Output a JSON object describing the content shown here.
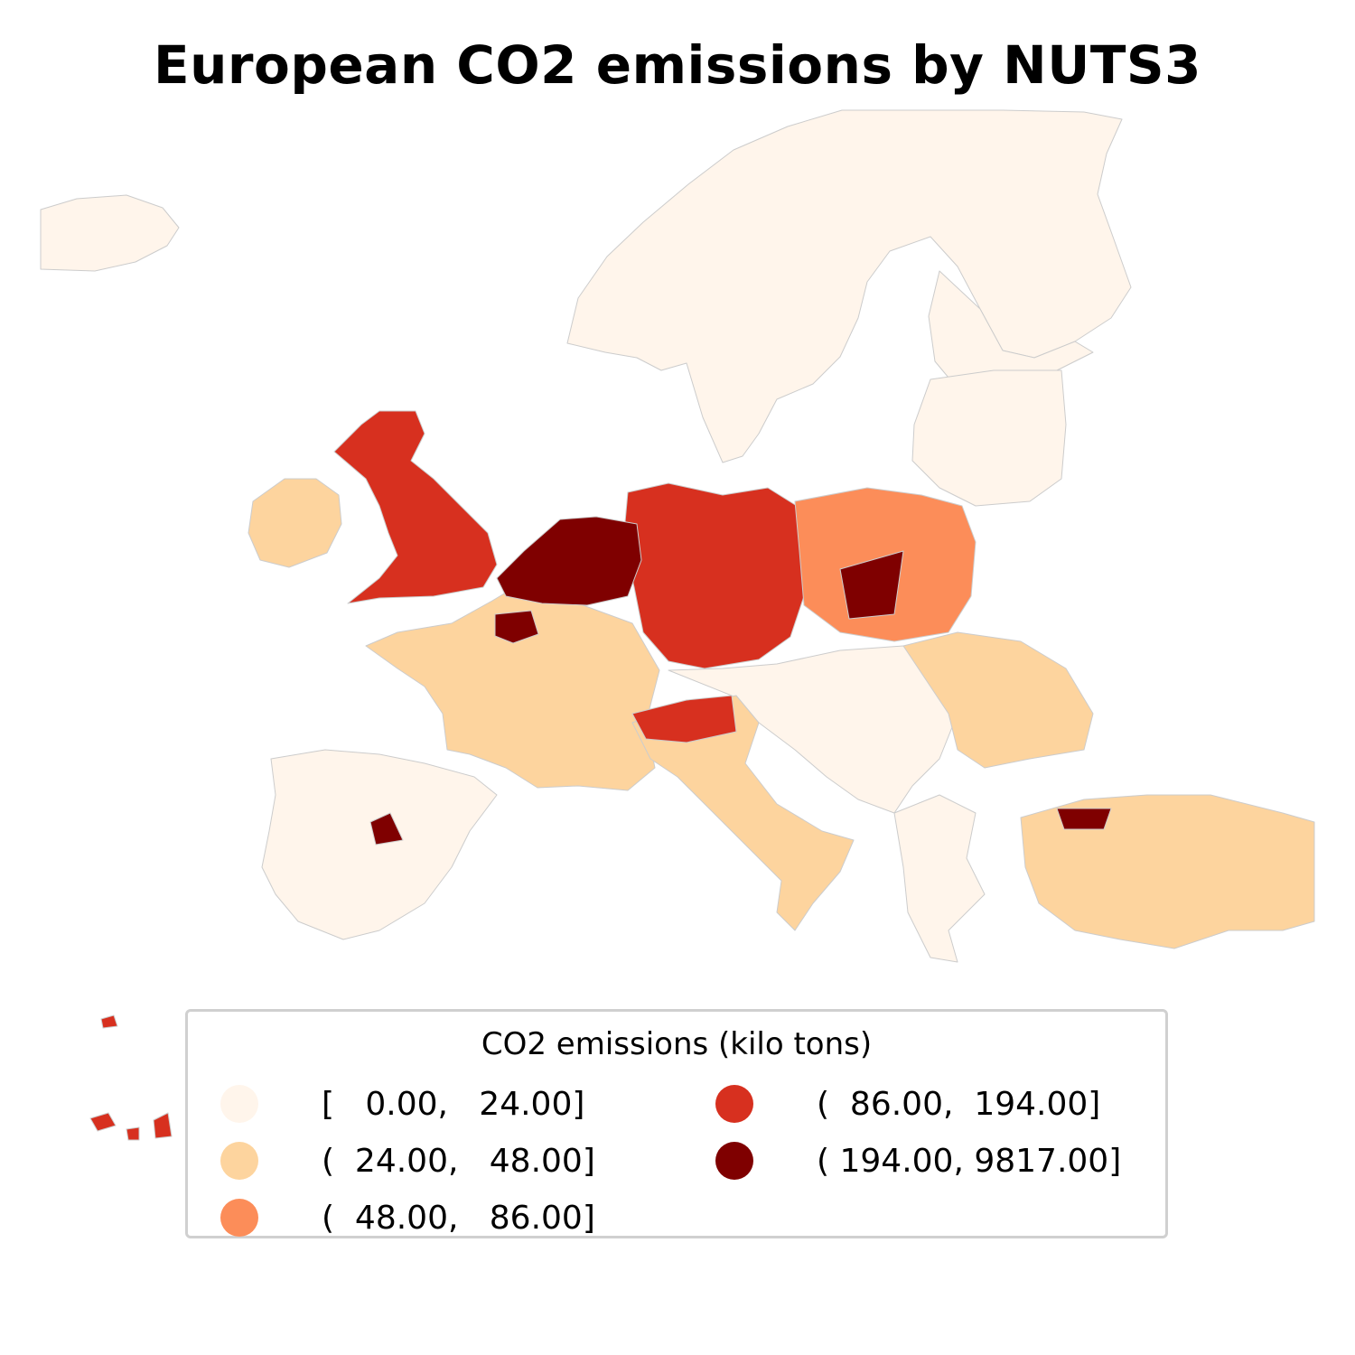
{
  "title": "European CO2 emissions by NUTS3",
  "legend": {
    "title": "CO2 emissions (kilo tons)",
    "items": [
      {
        "label": "[   0.00,   24.00]",
        "color": "#fff5eb"
      },
      {
        "label": "(  24.00,   48.00]",
        "color": "#fdd49e"
      },
      {
        "label": "(  48.00,   86.00]",
        "color": "#fc8d59"
      },
      {
        "label": "(  86.00,  194.00]",
        "color": "#d7301f"
      },
      {
        "label": "( 194.00, 9817.00]",
        "color": "#7f0000"
      }
    ]
  },
  "map": {
    "border_color": "#cccccc",
    "region_classes": [
      {
        "name": "Iceland",
        "class": 0
      },
      {
        "name": "Scandinavia",
        "class": 0
      },
      {
        "name": "Finland",
        "class": 0
      },
      {
        "name": "Baltics",
        "class": 0
      },
      {
        "name": "Ireland",
        "class": 1
      },
      {
        "name": "Great Britain",
        "class": 3
      },
      {
        "name": "Benelux and Ruhr",
        "class": 4
      },
      {
        "name": "Germany",
        "class": 3
      },
      {
        "name": "Poland",
        "class": 2
      },
      {
        "name": "Upper Silesia",
        "class": 4
      },
      {
        "name": "France",
        "class": 1
      },
      {
        "name": "Paris",
        "class": 4
      },
      {
        "name": "Iberia",
        "class": 0
      },
      {
        "name": "Madrid",
        "class": 4
      },
      {
        "name": "Po Valley",
        "class": 3
      },
      {
        "name": "Italy",
        "class": 1
      },
      {
        "name": "Balkans",
        "class": 0
      },
      {
        "name": "Romania",
        "class": 1
      },
      {
        "name": "Greece",
        "class": 0
      },
      {
        "name": "Turkey",
        "class": 1
      },
      {
        "name": "Istanbul",
        "class": 4
      },
      {
        "name": "Canary Islands",
        "class": 3
      }
    ]
  }
}
